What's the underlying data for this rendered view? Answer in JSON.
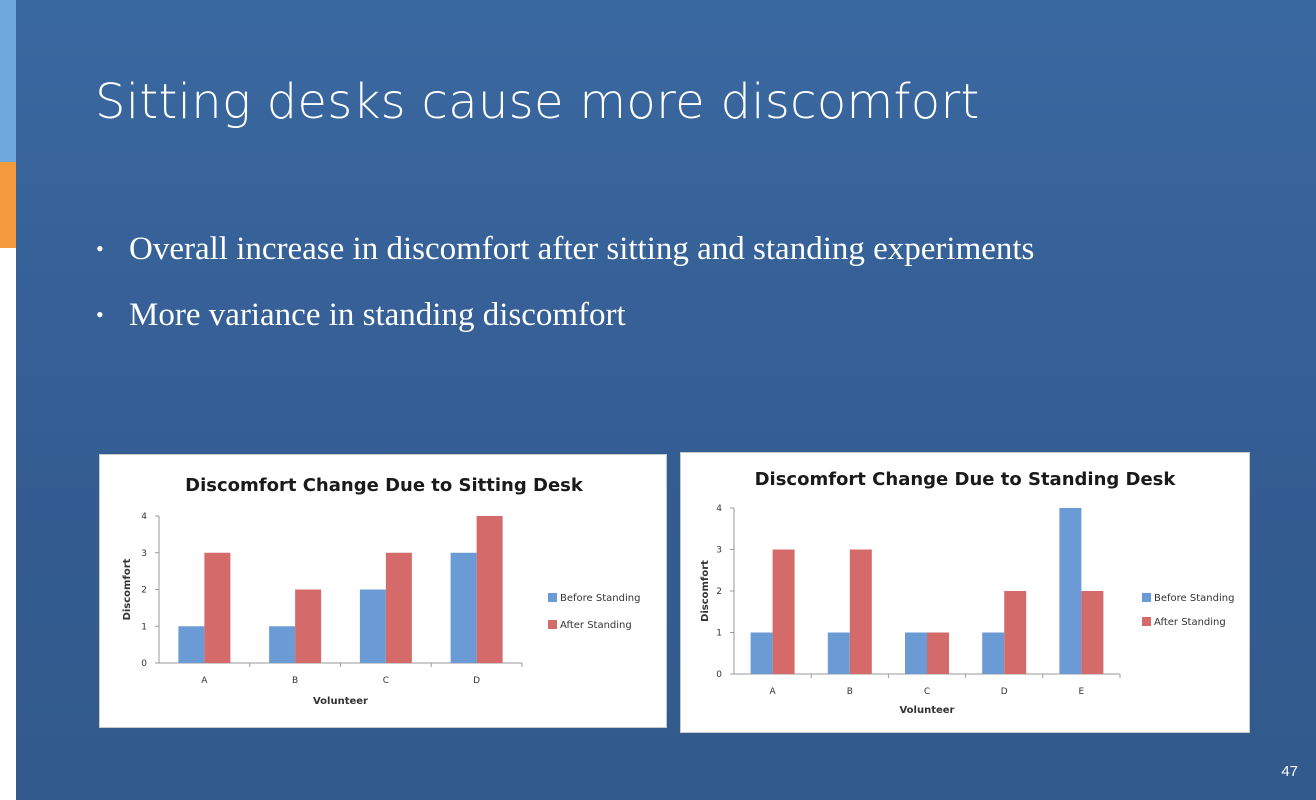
{
  "slide": {
    "title": "Sitting desks cause more discomfort",
    "bullets": [
      "Overall increase in discomfort after sitting and standing experiments",
      "More variance in standing discomfort"
    ],
    "page_number": "47",
    "bullet_glyph": "•"
  },
  "colors": {
    "background": "#3a68a0",
    "accent_blue": "#6fa8dc",
    "accent_orange": "#f39a3c",
    "before_series": "#6a9bd4",
    "after_series": "#d46a6a"
  },
  "chart_data": [
    {
      "type": "bar",
      "title": "Discomfort Change Due to Sitting Desk",
      "xlabel": "Volunteer",
      "ylabel": "Discomfort",
      "categories": [
        "A",
        "B",
        "C",
        "D"
      ],
      "series": [
        {
          "name": "Before Standing",
          "values": [
            1,
            1,
            2,
            3
          ],
          "color": "#6a9bd4"
        },
        {
          "name": "After Standing",
          "values": [
            3,
            2,
            3,
            4
          ],
          "color": "#d46a6a"
        }
      ],
      "ylim": [
        0,
        4
      ],
      "yticks": [
        "0",
        "1",
        "2",
        "3",
        "4"
      ],
      "grid": false,
      "legend": "right"
    },
    {
      "type": "bar",
      "title": "Discomfort Change Due to Standing Desk",
      "xlabel": "Volunteer",
      "ylabel": "Discomfort",
      "categories": [
        "A",
        "B",
        "C",
        "D",
        "E"
      ],
      "series": [
        {
          "name": "Before Standing",
          "values": [
            1,
            1,
            1,
            1,
            4
          ],
          "color": "#6a9bd4"
        },
        {
          "name": "After Standing",
          "values": [
            3,
            3,
            1,
            2,
            2
          ],
          "color": "#d46a6a"
        }
      ],
      "ylim": [
        0,
        4
      ],
      "yticks": [
        "0",
        "1",
        "2",
        "3",
        "4"
      ],
      "grid": false,
      "legend": "right"
    }
  ]
}
